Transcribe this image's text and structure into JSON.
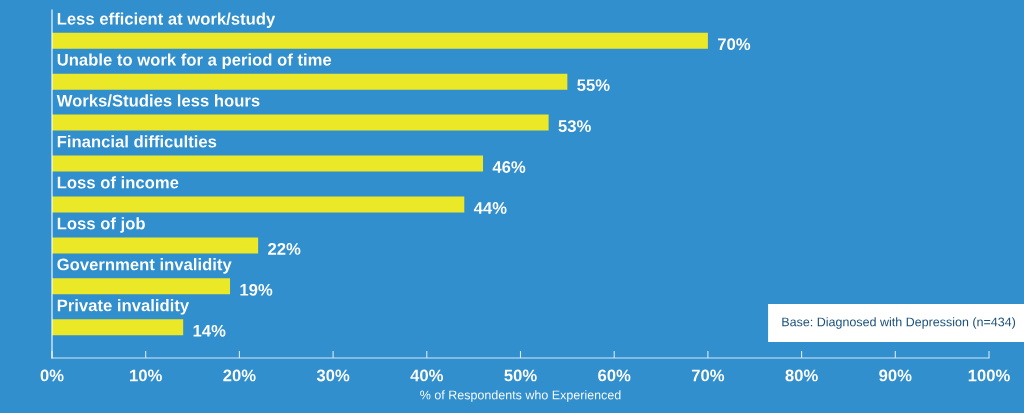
{
  "chart_data": {
    "type": "bar",
    "orientation": "horizontal",
    "categories": [
      "Less efficient at work/study",
      "Unable to work for a period of time",
      "Works/Studies less hours",
      "Financial difficulties",
      "Loss of income",
      "Loss of job",
      "Government invalidity",
      "Private invalidity"
    ],
    "values": [
      70,
      55,
      53,
      46,
      44,
      22,
      19,
      14
    ],
    "value_labels": [
      "70%",
      "55%",
      "53%",
      "46%",
      "44%",
      "22%",
      "19%",
      "14%"
    ],
    "color": "#ebe828",
    "xlabel": "% of Respondents who Experienced",
    "xlim": [
      0,
      100
    ],
    "xticks": [
      {
        "value": 0,
        "label": "0%"
      },
      {
        "value": 10,
        "label": "10%"
      },
      {
        "value": 20,
        "label": "20%"
      },
      {
        "value": 30,
        "label": "30%"
      },
      {
        "value": 40,
        "label": "40%"
      },
      {
        "value": 50,
        "label": "50%"
      },
      {
        "value": 60,
        "label": "60%"
      },
      {
        "value": 70,
        "label": "70%"
      },
      {
        "value": 80,
        "label": "80%"
      },
      {
        "value": 90,
        "label": "90%"
      },
      {
        "value": 100,
        "label": "100%"
      }
    ],
    "annotations": [
      "Base: Diagnosed with Depression (n=434)"
    ],
    "grid": false
  }
}
